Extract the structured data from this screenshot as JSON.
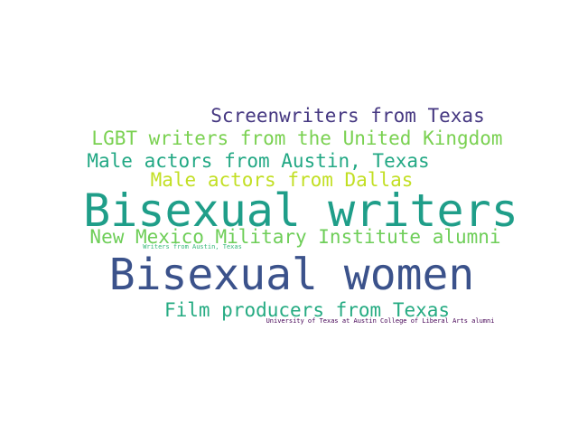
{
  "cloud": {
    "words": [
      {
        "text": "Screenwriters from Texas",
        "color": "#453781"
      },
      {
        "text": "LGBT writers from the United Kingdom",
        "color": "#7ad151"
      },
      {
        "text": "Male actors from Austin, Texas",
        "color": "#22a884"
      },
      {
        "text": "Male actors from Dallas",
        "color": "#c2df23"
      },
      {
        "text": "Bisexual writers",
        "color": "#1f9e89"
      },
      {
        "text": "New Mexico Military Institute alumni",
        "color": "#6ece58"
      },
      {
        "text": "Writers from Austin, Texas",
        "color": "#35b779"
      },
      {
        "text": "Bisexual women",
        "color": "#3b528b"
      },
      {
        "text": "Film producers from Texas",
        "color": "#25ab82"
      },
      {
        "text": "University of Texas at Austin College of Liberal Arts alumni",
        "color": "#440154"
      }
    ]
  }
}
